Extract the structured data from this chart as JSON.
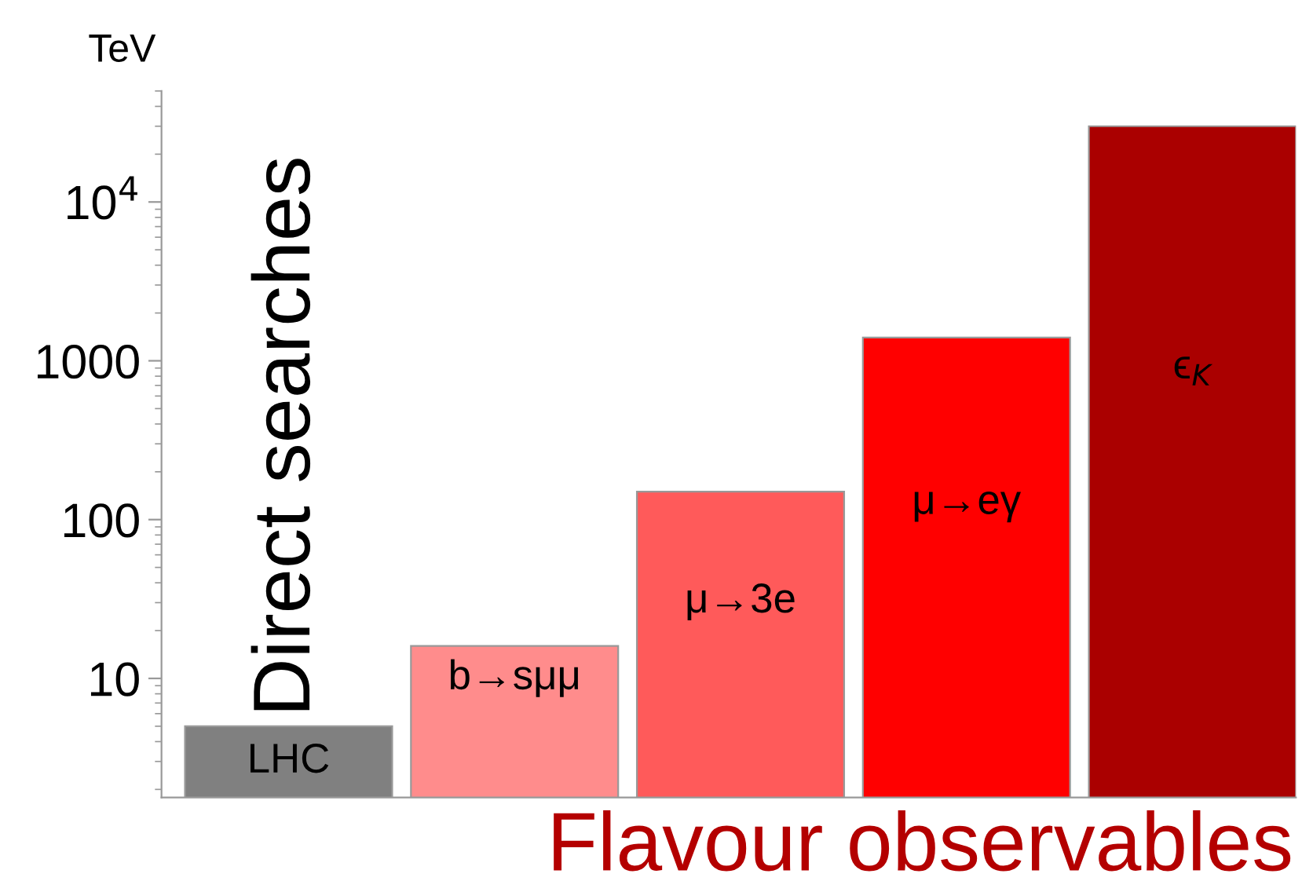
{
  "chart_data": {
    "type": "bar",
    "ylabel": "TeV",
    "log": true,
    "categories": [
      "LHC",
      "b→sμμ",
      "μ→3e",
      "μ→eγ",
      "ϵ$_{K}$"
    ],
    "values": [
      5,
      16,
      150,
      1400,
      30000
    ],
    "colors": [
      "#808080",
      "#ff8c8c",
      "#ff5a5a",
      "#ff0000",
      "#aa0000"
    ],
    "ylim": [
      1.78,
      50000
    ],
    "yticks": [
      10,
      100,
      1000,
      {
        "value": 10000,
        "label": "10$^{4}$"
      }
    ],
    "tick_labels": "y",
    "grid": false,
    "legend": false,
    "annotations": [
      "Direct searches",
      "Flavour observables"
    ]
  }
}
